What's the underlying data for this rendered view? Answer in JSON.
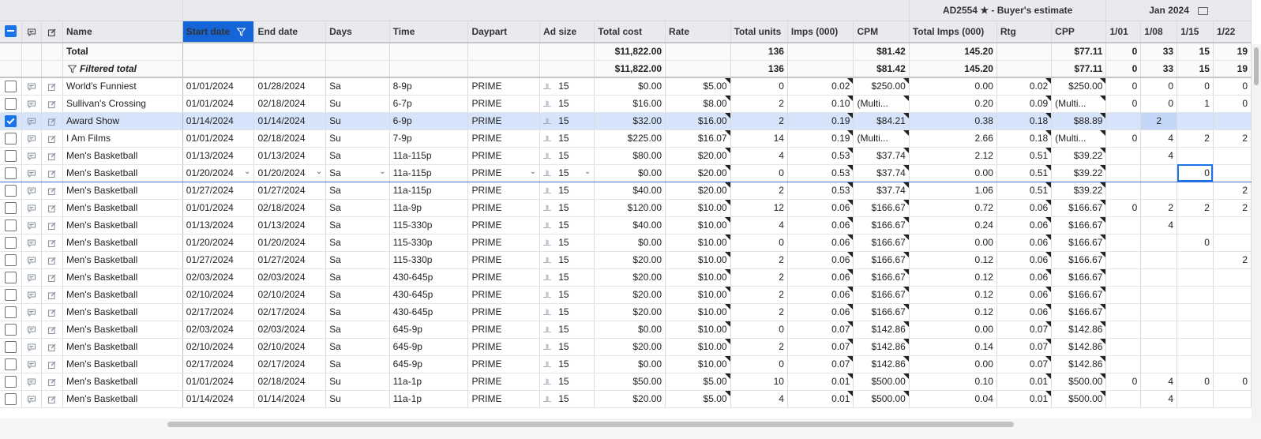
{
  "group_header": {
    "estimate_id": "AD2554",
    "estimate_suffix": "- Buyer's estimate",
    "month": "Jan 2024"
  },
  "columns": {
    "name": "Name",
    "start_date": "Start date",
    "end_date": "End date",
    "days": "Days",
    "time": "Time",
    "daypart": "Daypart",
    "ad_size": "Ad size",
    "total_cost": "Total cost",
    "rate": "Rate",
    "total_units": "Total units",
    "imps": "Imps (000)",
    "cpm": "CPM",
    "total_imps": "Total Imps (000)",
    "rtg": "Rtg",
    "cpp": "CPP",
    "w1": "1/01",
    "w2": "1/08",
    "w3": "1/15",
    "w4": "1/22"
  },
  "totals": {
    "label": "Total",
    "total_cost": "$11,822.00",
    "total_units": "136",
    "cpm": "$81.42",
    "total_imps": "145.20",
    "cpp": "$77.11",
    "w1": "0",
    "w2": "33",
    "w3": "15",
    "w4": "19"
  },
  "filtered_totals": {
    "label": "Filtered total",
    "total_cost": "$11,822.00",
    "total_units": "136",
    "cpm": "$81.42",
    "total_imps": "145.20",
    "cpp": "$77.11",
    "w1": "0",
    "w2": "33",
    "w3": "15",
    "w4": "19"
  },
  "rows": [
    {
      "name": "World's Funniest",
      "start": "01/01/2024",
      "end": "01/28/2024",
      "days": "Sa",
      "time": "8-9p",
      "daypart": "PRIME",
      "adsize": "15",
      "cost": "$0.00",
      "rate": "$5.00",
      "units": "0",
      "imps": "0.02",
      "cpm": "$250.00",
      "timps": "0.00",
      "rtg": "0.02",
      "cpp": "$250.00",
      "w1": "0",
      "w2": "0",
      "w3": "0",
      "w4": "0"
    },
    {
      "name": "Sullivan's Crossing",
      "start": "01/01/2024",
      "end": "02/18/2024",
      "days": "Su",
      "time": "6-7p",
      "daypart": "PRIME",
      "adsize": "15",
      "cost": "$16.00",
      "rate": "$8.00",
      "units": "2",
      "imps": "0.10",
      "cpm": "(Multi...",
      "timps": "0.20",
      "rtg": "0.09",
      "cpp": "(Multi...",
      "w1": "0",
      "w2": "0",
      "w3": "1",
      "w4": "0"
    },
    {
      "name": "Award Show",
      "start": "01/14/2024",
      "end": "01/14/2024",
      "days": "Su",
      "time": "6-9p",
      "daypart": "PRIME",
      "adsize": "15",
      "cost": "$32.00",
      "rate": "$16.00",
      "units": "2",
      "imps": "0.19",
      "cpm": "$84.21",
      "timps": "0.38",
      "rtg": "0.18",
      "cpp": "$88.89",
      "w1": "",
      "w2": "2",
      "w3": "",
      "w4": "",
      "checked": true
    },
    {
      "name": "I Am Films",
      "start": "01/01/2024",
      "end": "02/18/2024",
      "days": "Su",
      "time": "7-9p",
      "daypart": "PRIME",
      "adsize": "15",
      "cost": "$225.00",
      "rate": "$16.07",
      "units": "14",
      "imps": "0.19",
      "cpm": "(Multi...",
      "timps": "2.66",
      "rtg": "0.18",
      "cpp": "(Multi...",
      "w1": "0",
      "w2": "4",
      "w3": "2",
      "w4": "2"
    },
    {
      "name": "Men's Basketball",
      "start": "01/13/2024",
      "end": "01/13/2024",
      "days": "Sa",
      "time": "11a-115p",
      "daypart": "PRIME",
      "adsize": "15",
      "cost": "$80.00",
      "rate": "$20.00",
      "units": "4",
      "imps": "0.53",
      "cpm": "$37.74",
      "timps": "2.12",
      "rtg": "0.51",
      "cpp": "$39.22",
      "w1": "",
      "w2": "4",
      "w3": "",
      "w4": ""
    },
    {
      "name": "Men's Basketball",
      "start": "01/20/2024",
      "end": "01/20/2024",
      "days": "Sa",
      "time": "11a-115p",
      "daypart": "PRIME",
      "adsize": "15",
      "cost": "$0.00",
      "rate": "$20.00",
      "units": "0",
      "imps": "0.53",
      "cpm": "$37.74",
      "timps": "0.00",
      "rtg": "0.51",
      "cpp": "$39.22",
      "w1": "",
      "w2": "",
      "w3": "0",
      "w4": "",
      "active": true
    },
    {
      "name": "Men's Basketball",
      "start": "01/27/2024",
      "end": "01/27/2024",
      "days": "Sa",
      "time": "11a-115p",
      "daypart": "PRIME",
      "adsize": "15",
      "cost": "$40.00",
      "rate": "$20.00",
      "units": "2",
      "imps": "0.53",
      "cpm": "$37.74",
      "timps": "1.06",
      "rtg": "0.51",
      "cpp": "$39.22",
      "w1": "",
      "w2": "",
      "w3": "",
      "w4": "2"
    },
    {
      "name": "Men's Basketball",
      "start": "01/01/2024",
      "end": "02/18/2024",
      "days": "Sa",
      "time": "11a-9p",
      "daypart": "PRIME",
      "adsize": "15",
      "cost": "$120.00",
      "rate": "$10.00",
      "units": "12",
      "imps": "0.06",
      "cpm": "$166.67",
      "timps": "0.72",
      "rtg": "0.06",
      "cpp": "$166.67",
      "w1": "0",
      "w2": "2",
      "w3": "2",
      "w4": "2"
    },
    {
      "name": "Men's Basketball",
      "start": "01/13/2024",
      "end": "01/13/2024",
      "days": "Sa",
      "time": "115-330p",
      "daypart": "PRIME",
      "adsize": "15",
      "cost": "$40.00",
      "rate": "$10.00",
      "units": "4",
      "imps": "0.06",
      "cpm": "$166.67",
      "timps": "0.24",
      "rtg": "0.06",
      "cpp": "$166.67",
      "w1": "",
      "w2": "4",
      "w3": "",
      "w4": ""
    },
    {
      "name": "Men's Basketball",
      "start": "01/20/2024",
      "end": "01/20/2024",
      "days": "Sa",
      "time": "115-330p",
      "daypart": "PRIME",
      "adsize": "15",
      "cost": "$0.00",
      "rate": "$10.00",
      "units": "0",
      "imps": "0.06",
      "cpm": "$166.67",
      "timps": "0.00",
      "rtg": "0.06",
      "cpp": "$166.67",
      "w1": "",
      "w2": "",
      "w3": "0",
      "w4": ""
    },
    {
      "name": "Men's Basketball",
      "start": "01/27/2024",
      "end": "01/27/2024",
      "days": "Sa",
      "time": "115-330p",
      "daypart": "PRIME",
      "adsize": "15",
      "cost": "$20.00",
      "rate": "$10.00",
      "units": "2",
      "imps": "0.06",
      "cpm": "$166.67",
      "timps": "0.12",
      "rtg": "0.06",
      "cpp": "$166.67",
      "w1": "",
      "w2": "",
      "w3": "",
      "w4": "2"
    },
    {
      "name": "Men's Basketball",
      "start": "02/03/2024",
      "end": "02/03/2024",
      "days": "Sa",
      "time": "430-645p",
      "daypart": "PRIME",
      "adsize": "15",
      "cost": "$20.00",
      "rate": "$10.00",
      "units": "2",
      "imps": "0.06",
      "cpm": "$166.67",
      "timps": "0.12",
      "rtg": "0.06",
      "cpp": "$166.67",
      "w1": "",
      "w2": "",
      "w3": "",
      "w4": ""
    },
    {
      "name": "Men's Basketball",
      "start": "02/10/2024",
      "end": "02/10/2024",
      "days": "Sa",
      "time": "430-645p",
      "daypart": "PRIME",
      "adsize": "15",
      "cost": "$20.00",
      "rate": "$10.00",
      "units": "2",
      "imps": "0.06",
      "cpm": "$166.67",
      "timps": "0.12",
      "rtg": "0.06",
      "cpp": "$166.67",
      "w1": "",
      "w2": "",
      "w3": "",
      "w4": ""
    },
    {
      "name": "Men's Basketball",
      "start": "02/17/2024",
      "end": "02/17/2024",
      "days": "Sa",
      "time": "430-645p",
      "daypart": "PRIME",
      "adsize": "15",
      "cost": "$20.00",
      "rate": "$10.00",
      "units": "2",
      "imps": "0.06",
      "cpm": "$166.67",
      "timps": "0.12",
      "rtg": "0.06",
      "cpp": "$166.67",
      "w1": "",
      "w2": "",
      "w3": "",
      "w4": ""
    },
    {
      "name": "Men's Basketball",
      "start": "02/03/2024",
      "end": "02/03/2024",
      "days": "Sa",
      "time": "645-9p",
      "daypart": "PRIME",
      "adsize": "15",
      "cost": "$0.00",
      "rate": "$10.00",
      "units": "0",
      "imps": "0.07",
      "cpm": "$142.86",
      "timps": "0.00",
      "rtg": "0.07",
      "cpp": "$142.86",
      "w1": "",
      "w2": "",
      "w3": "",
      "w4": ""
    },
    {
      "name": "Men's Basketball",
      "start": "02/10/2024",
      "end": "02/10/2024",
      "days": "Sa",
      "time": "645-9p",
      "daypart": "PRIME",
      "adsize": "15",
      "cost": "$20.00",
      "rate": "$10.00",
      "units": "2",
      "imps": "0.07",
      "cpm": "$142.86",
      "timps": "0.14",
      "rtg": "0.07",
      "cpp": "$142.86",
      "w1": "",
      "w2": "",
      "w3": "",
      "w4": ""
    },
    {
      "name": "Men's Basketball",
      "start": "02/17/2024",
      "end": "02/17/2024",
      "days": "Sa",
      "time": "645-9p",
      "daypart": "PRIME",
      "adsize": "15",
      "cost": "$0.00",
      "rate": "$10.00",
      "units": "0",
      "imps": "0.07",
      "cpm": "$142.86",
      "timps": "0.00",
      "rtg": "0.07",
      "cpp": "$142.86",
      "w1": "",
      "w2": "",
      "w3": "",
      "w4": ""
    },
    {
      "name": "Men's Basketball",
      "start": "01/01/2024",
      "end": "02/18/2024",
      "days": "Su",
      "time": "11a-1p",
      "daypart": "PRIME",
      "adsize": "15",
      "cost": "$50.00",
      "rate": "$5.00",
      "units": "10",
      "imps": "0.01",
      "cpm": "$500.00",
      "timps": "0.10",
      "rtg": "0.01",
      "cpp": "$500.00",
      "w1": "0",
      "w2": "4",
      "w3": "0",
      "w4": "0"
    },
    {
      "name": "Men's Basketball",
      "start": "01/14/2024",
      "end": "01/14/2024",
      "days": "Su",
      "time": "11a-1p",
      "daypart": "PRIME",
      "adsize": "15",
      "cost": "$20.00",
      "rate": "$5.00",
      "units": "4",
      "imps": "0.01",
      "cpm": "$500.00",
      "timps": "0.04",
      "rtg": "0.01",
      "cpp": "$500.00",
      "w1": "",
      "w2": "4",
      "w3": "",
      "w4": ""
    }
  ]
}
